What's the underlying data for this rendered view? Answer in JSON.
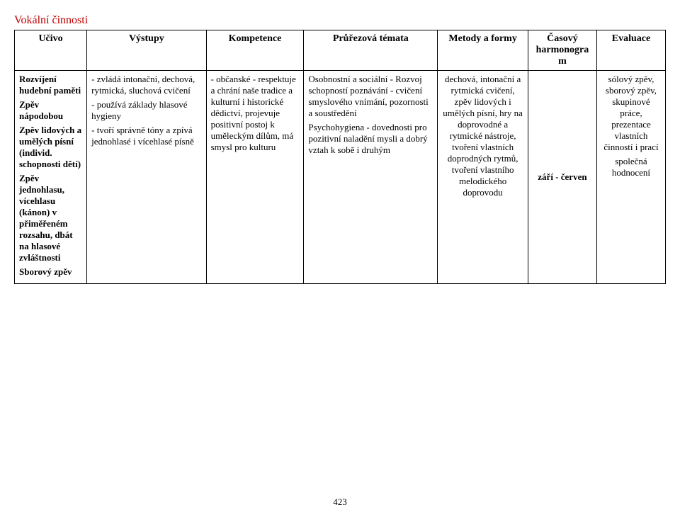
{
  "section_title": "Vokální činnosti",
  "headers": {
    "ucivo": "Učivo",
    "vystupy": "Výstupy",
    "kompetence": "Kompetence",
    "prurezova": "Průřezová témata",
    "metody": "Metody a formy",
    "casovy": "Časový harmonogram",
    "evaluace": "Evaluace"
  },
  "row": {
    "ucivo": {
      "p1": "Rozvíjení hudební paměti",
      "p2": "Zpěv nápodobou",
      "p3": "Zpěv lidových a umělých písní (individ. schopnosti dětí)",
      "p4": "Zpěv jednohlasu, vícehlasu (kánon) v přiměřeném rozsahu, dbát na hlasové zvláštnosti",
      "p5": "Sborový zpěv"
    },
    "vystupy": {
      "p1": "- zvládá intonační, dechová, rytmická, sluchová cvičení",
      "p2": "- používá základy hlasové hygieny",
      "p3": "- tvoří správně tóny a zpívá jednohlasé i vícehlasé písně"
    },
    "kompetence": {
      "p1": "- občanské - respektuje a chrání naše tradice a kulturní i historické dědictví, projevuje positivní postoj k uměleckým dílům, má smysl pro kulturu"
    },
    "prurezova": {
      "p1": "Osobnostní a sociální - Rozvoj schopností poznávání - cvičení smyslového vnímání, pozornosti a soustředění",
      "p2": "Psychohygiena - dovednosti pro pozitivní naladění mysli a dobrý vztah k sobě i druhým"
    },
    "metody": {
      "p1": "dechová, intonační a rytmická cvičení, zpěv lidových i umělých písní, hry na doprovodné a rytmické nástroje, tvoření vlastních doprodných rytmů, tvoření vlastního melodického doprovodu"
    },
    "casovy": {
      "p1": "září - červen"
    },
    "evaluace": {
      "p1": "sólový zpěv, sborový zpěv, skupinové práce, prezentace vlastních činností i prací",
      "p2": "společná hodnocení"
    }
  },
  "page_number": "423"
}
